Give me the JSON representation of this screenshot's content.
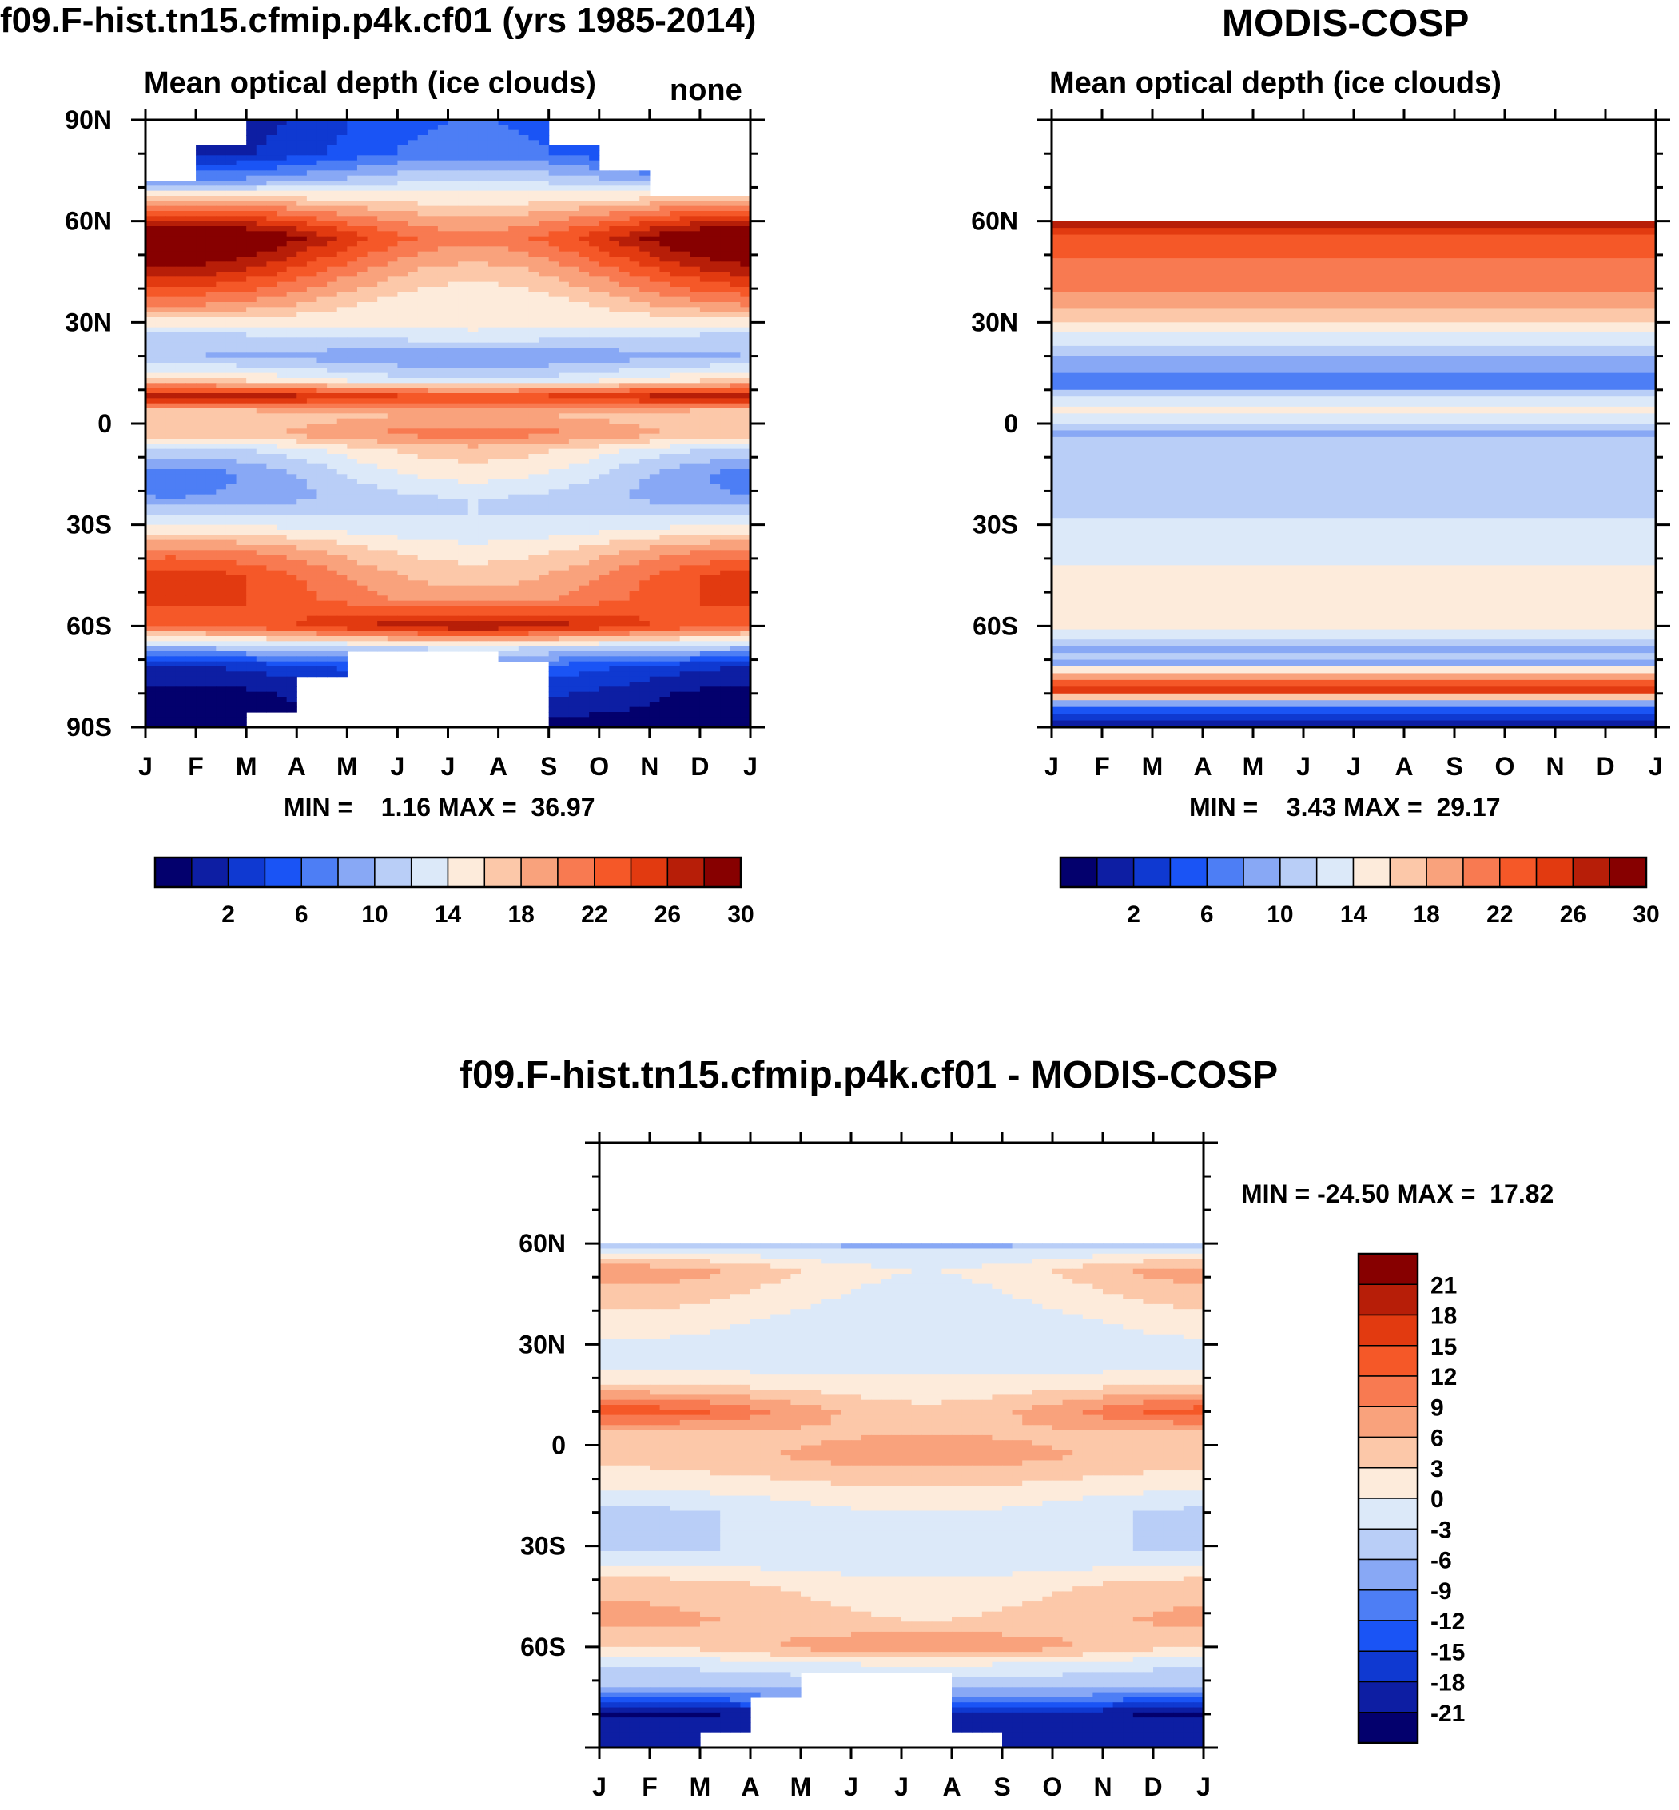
{
  "palettes": {
    "absolute": [
      "#03006d",
      "#0d1ea3",
      "#0f39d1",
      "#1a54f5",
      "#4d7ef5",
      "#88a8f5",
      "#b9cef7",
      "#dce9f9",
      "#fdebdb",
      "#fcc8a9",
      "#f9a27c",
      "#f87a51",
      "#f55828",
      "#e23a10",
      "#b71e08",
      "#870000"
    ],
    "difference": [
      "#03006d",
      "#0d1ea3",
      "#0f39d1",
      "#1a54f5",
      "#4d7ef5",
      "#88a8f5",
      "#b9cef7",
      "#dce9f9",
      "#fdebdb",
      "#fcc8a9",
      "#f9a27c",
      "#f87a51",
      "#f55828",
      "#e23a10",
      "#b71e08",
      "#870000"
    ]
  },
  "chart_data": [
    {
      "type": "heatmap",
      "title": "f09.F-hist.tn15.cfmip.p4k.cf01 (yrs 1985-2014)",
      "subtitle": "Mean optical depth (ice clouds)",
      "units_label": "none",
      "x_tick_labels": [
        "J",
        "F",
        "M",
        "A",
        "M",
        "J",
        "J",
        "A",
        "S",
        "O",
        "N",
        "D",
        "J"
      ],
      "y_tick_labels": [
        "90N",
        "60N",
        "30N",
        "0",
        "30S",
        "60S",
        "90S"
      ],
      "y_tick_values": [
        90,
        60,
        30,
        0,
        -30,
        -60,
        -90
      ],
      "ylim": [
        -90,
        90
      ],
      "stats_text": "MIN =    1.16 MAX =  36.97",
      "min": 1.16,
      "max": 36.97,
      "colorbar": {
        "orientation": "horizontal",
        "levels": [
          0,
          2,
          4,
          6,
          8,
          10,
          12,
          14,
          16,
          18,
          20,
          22,
          24,
          26,
          28,
          30
        ],
        "labels": [
          "2",
          "6",
          "10",
          "14",
          "18",
          "22",
          "26",
          "30"
        ]
      },
      "profile_lat": [
        -90,
        -80,
        -72,
        -66,
        -60,
        -52,
        -45,
        -38,
        -30,
        -22,
        -15,
        -8,
        -3,
        3,
        8,
        13,
        20,
        27,
        35,
        45,
        55,
        63,
        72,
        80,
        90
      ],
      "profile_val": [
        1,
        3,
        6,
        14,
        27,
        24,
        23,
        20,
        15,
        12,
        13,
        16,
        21,
        19,
        28,
        16,
        11,
        15,
        19,
        24,
        29,
        22,
        12,
        6,
        5
      ],
      "seasonal_amp": [
        0,
        -2,
        -2,
        -1,
        -3,
        3,
        4,
        3,
        1,
        -2,
        -4,
        -3,
        -2,
        -1,
        2,
        2,
        1,
        -1,
        3,
        5,
        6,
        3,
        -2,
        -3,
        -3
      ],
      "missing": "polar gaps shown in white"
    },
    {
      "type": "heatmap",
      "title": "MODIS-COSP",
      "subtitle": "Mean optical depth (ice clouds)",
      "x_tick_labels": [
        "J",
        "F",
        "M",
        "A",
        "M",
        "J",
        "J",
        "A",
        "S",
        "O",
        "N",
        "D",
        "J"
      ],
      "y_tick_labels": [
        "60N",
        "30N",
        "0",
        "30S",
        "60S"
      ],
      "y_tick_values": [
        60,
        30,
        0,
        -30,
        -60
      ],
      "ylim": [
        -90,
        90
      ],
      "stats_text": "MIN =    3.43 MAX =  29.17",
      "min": 3.43,
      "max": 29.17,
      "colorbar": {
        "orientation": "horizontal",
        "levels": [
          0,
          2,
          4,
          6,
          8,
          10,
          12,
          14,
          16,
          18,
          20,
          22,
          24,
          26,
          28,
          30
        ],
        "labels": [
          "2",
          "6",
          "10",
          "14",
          "18",
          "22",
          "26",
          "30"
        ]
      },
      "bands": [
        {
          "lat_from": 90,
          "lat_to": 60,
          "value": null
        },
        {
          "lat_from": 60,
          "lat_to": 58,
          "value": 28
        },
        {
          "lat_from": 58,
          "lat_to": 56,
          "value": 26
        },
        {
          "lat_from": 56,
          "lat_to": 49,
          "value": 25
        },
        {
          "lat_from": 49,
          "lat_to": 44,
          "value": 23
        },
        {
          "lat_from": 44,
          "lat_to": 39,
          "value": 22
        },
        {
          "lat_from": 39,
          "lat_to": 34,
          "value": 20
        },
        {
          "lat_from": 34,
          "lat_to": 30,
          "value": 19
        },
        {
          "lat_from": 30,
          "lat_to": 27,
          "value": 17
        },
        {
          "lat_from": 27,
          "lat_to": 23,
          "value": 15
        },
        {
          "lat_from": 23,
          "lat_to": 20,
          "value": 13
        },
        {
          "lat_from": 20,
          "lat_to": 15,
          "value": 11
        },
        {
          "lat_from": 15,
          "lat_to": 10,
          "value": 9
        },
        {
          "lat_from": 10,
          "lat_to": 8,
          "value": 13
        },
        {
          "lat_from": 8,
          "lat_to": 5,
          "value": 15
        },
        {
          "lat_from": 5,
          "lat_to": 3,
          "value": 17
        },
        {
          "lat_from": 3,
          "lat_to": 0,
          "value": 15
        },
        {
          "lat_from": 0,
          "lat_to": -2,
          "value": 13
        },
        {
          "lat_from": -2,
          "lat_to": -4,
          "value": 11
        },
        {
          "lat_from": -4,
          "lat_to": -28,
          "value": 13
        },
        {
          "lat_from": -28,
          "lat_to": -42,
          "value": 15
        },
        {
          "lat_from": -42,
          "lat_to": -61,
          "value": 17
        },
        {
          "lat_from": -61,
          "lat_to": -64,
          "value": 15
        },
        {
          "lat_from": -64,
          "lat_to": -66,
          "value": 13
        },
        {
          "lat_from": -66,
          "lat_to": -68,
          "value": 11
        },
        {
          "lat_from": -68,
          "lat_to": -70,
          "value": 13
        },
        {
          "lat_from": -70,
          "lat_to": -72,
          "value": 11
        },
        {
          "lat_from": -72,
          "lat_to": -74,
          "value": 17
        },
        {
          "lat_from": -74,
          "lat_to": -76,
          "value": 21
        },
        {
          "lat_from": -76,
          "lat_to": -78,
          "value": 25
        },
        {
          "lat_from": -78,
          "lat_to": -80,
          "value": 27
        },
        {
          "lat_from": -80,
          "lat_to": -82,
          "value": 19
        },
        {
          "lat_from": -82,
          "lat_to": -84,
          "value": 11
        },
        {
          "lat_from": -84,
          "lat_to": -86,
          "value": 7
        },
        {
          "lat_from": -86,
          "lat_to": -88,
          "value": 5
        },
        {
          "lat_from": -88,
          "lat_to": -90,
          "value": 3
        }
      ]
    },
    {
      "type": "heatmap",
      "title": "f09.F-hist.tn15.cfmip.p4k.cf01 - MODIS-COSP",
      "x_tick_labels": [
        "J",
        "F",
        "M",
        "A",
        "M",
        "J",
        "J",
        "A",
        "S",
        "O",
        "N",
        "D",
        "J"
      ],
      "y_tick_labels": [
        "60N",
        "30N",
        "0",
        "30S",
        "60S"
      ],
      "y_tick_values": [
        60,
        30,
        0,
        -30,
        -60
      ],
      "ylim": [
        -90,
        90
      ],
      "stats_text": "MIN = -24.50 MAX =  17.82",
      "min": -24.5,
      "max": 17.82,
      "colorbar": {
        "orientation": "vertical",
        "levels": [
          -24,
          -21,
          -18,
          -15,
          -12,
          -9,
          -6,
          -3,
          0,
          3,
          6,
          9,
          12,
          15,
          18,
          21
        ],
        "labels": [
          "21",
          "18",
          "15",
          "12",
          "9",
          "6",
          "3",
          "0",
          "-3",
          "-6",
          "-9",
          "-12",
          "-15",
          "-18",
          "-21"
        ]
      },
      "profile_lat": [
        -90,
        -85,
        -80,
        -76,
        -72,
        -66,
        -60,
        -52,
        -42,
        -32,
        -20,
        -10,
        -3,
        3,
        10,
        18,
        25,
        35,
        45,
        52,
        58,
        60
      ],
      "profile_val": [
        -20,
        -18,
        -20,
        -12,
        -5,
        -2,
        6,
        5,
        3,
        -3,
        -2,
        3,
        6,
        5,
        9,
        2,
        -2,
        -1,
        2,
        4,
        -2,
        -8
      ],
      "seasonal_amp": [
        0,
        0,
        -2,
        -1,
        0,
        -1,
        -3,
        2,
        2,
        0,
        -2,
        -1,
        -2,
        -1,
        5,
        1,
        0,
        2,
        3,
        4,
        1,
        0
      ],
      "missing": "north of 60N and polar gaps shown in white"
    }
  ]
}
